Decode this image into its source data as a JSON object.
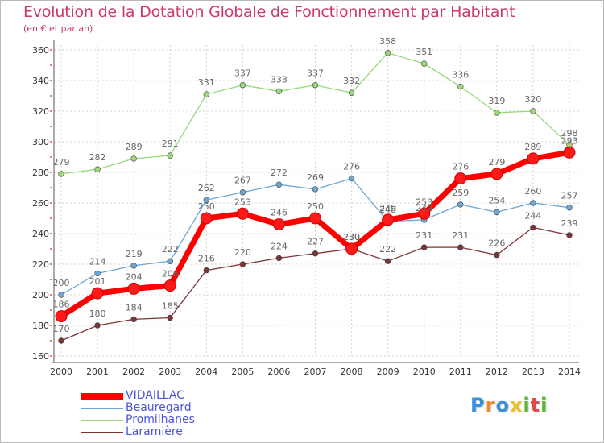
{
  "chart_data": {
    "type": "line",
    "title": "Evolution de la Dotation Globale de Fonctionnement par Habitant",
    "subtitle": "(en € et par an)",
    "xlabel": "",
    "ylabel": "",
    "x": [
      "2000",
      "2001",
      "2002",
      "2003",
      "2004",
      "2005",
      "2006",
      "2007",
      "2008",
      "2009",
      "2010",
      "2011",
      "2012",
      "2013",
      "2014"
    ],
    "ylim": [
      160,
      360
    ],
    "yticks": [
      160,
      180,
      200,
      220,
      240,
      260,
      280,
      300,
      320,
      340,
      360
    ],
    "grid": true,
    "legend_position": "bottom-left",
    "series": [
      {
        "name": "VIDAILLAC",
        "color": "#ff0000",
        "labels": [
          "186",
          "201",
          "204",
          "206",
          "250",
          "253",
          "246",
          "250",
          "230",
          "249",
          "253",
          "276",
          "279",
          "289",
          "293"
        ],
        "values": [
          186,
          201,
          204,
          206,
          250,
          253,
          246,
          250,
          230,
          249,
          253,
          276,
          279,
          289,
          293
        ]
      },
      {
        "name": "Beauregard",
        "color": "#6ea6d6",
        "labels": [
          "200",
          "214",
          "219",
          "222",
          "262",
          "267",
          "272",
          "269",
          "276",
          "248",
          "249",
          "259",
          "254",
          "260",
          "257"
        ],
        "values": [
          200,
          214,
          219,
          222,
          262,
          267,
          272,
          269,
          276,
          248,
          249,
          259,
          254,
          260,
          257
        ]
      },
      {
        "name": "Promilhanes",
        "color": "#9ad87a",
        "labels": [
          "279",
          "282",
          "289",
          "291",
          "331",
          "337",
          "333",
          "337",
          "332",
          "358",
          "351",
          "336",
          "319",
          "320",
          "298"
        ],
        "values": [
          279,
          282,
          289,
          291,
          331,
          337,
          333,
          337,
          332,
          358,
          351,
          336,
          319,
          320,
          298
        ]
      },
      {
        "name": "Laramière",
        "color": "#7a3636",
        "labels": [
          "170",
          "180",
          "184",
          "185",
          "216",
          "220",
          "224",
          "227",
          "230",
          "222",
          "231",
          "231",
          "226",
          "244",
          "239"
        ],
        "values": [
          170,
          180,
          184,
          185,
          216,
          220,
          224,
          227,
          230,
          222,
          231,
          231,
          226,
          244,
          239
        ]
      }
    ]
  },
  "logo": {
    "letters": [
      "P",
      "r",
      "o",
      "x",
      "i",
      "t",
      "i"
    ],
    "colors": [
      "#3a8fd8",
      "#f08a24",
      "#3a8fd8",
      "#f0c020",
      "#5cb82e",
      "#e04a4a",
      "#5cb82e"
    ]
  }
}
